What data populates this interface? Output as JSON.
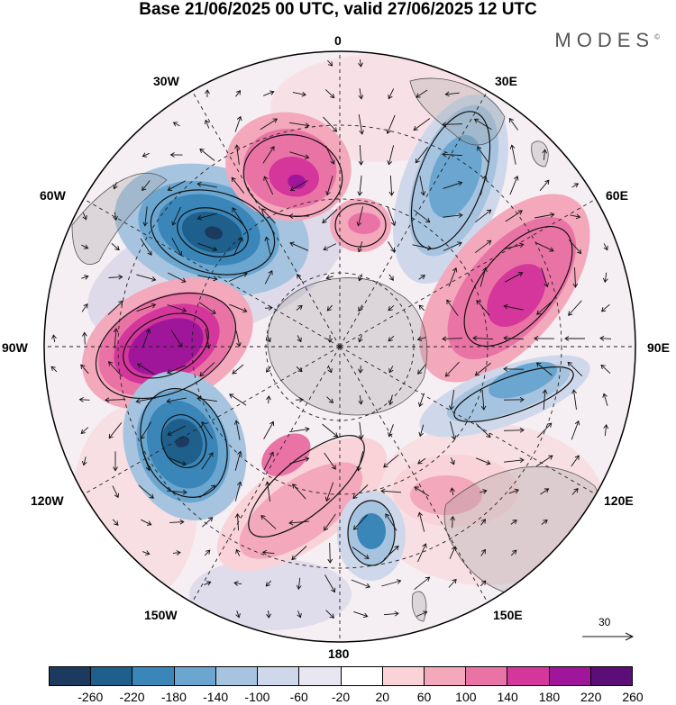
{
  "title": "Base 21/06/2025 00 UTC, valid 27/06/2025 12 UTC",
  "brand": "MODES",
  "brand_mark": "©",
  "longitude_labels": {
    "top": "0",
    "top_left": "30W",
    "top_right": "30E",
    "upper_left": "60W",
    "upper_right": "60E",
    "left": "90W",
    "right": "90E",
    "lower_left": "120W",
    "lower_right": "120E",
    "bottom_left": "150W",
    "bottom_right": "150E",
    "bottom": "180"
  },
  "vector_scale_label": "30",
  "colorbar": {
    "colors": [
      "#1b3a5e",
      "#1f5f8c",
      "#3a86b8",
      "#6aa6cf",
      "#a6c4df",
      "#cfd8ea",
      "#e8e6f1",
      "#ffffff",
      "#f9d3d8",
      "#f3a8bc",
      "#ea73a6",
      "#d4369b",
      "#a0169a",
      "#5c0e78"
    ],
    "ticks": [
      "-260",
      "-220",
      "-180",
      "-140",
      "-100",
      "-60",
      "-20",
      "20",
      "60",
      "100",
      "140",
      "180",
      "220",
      "260"
    ]
  },
  "anomaly_blobs": [
    {
      "name": "blob-south-atlantic-low",
      "sign": "negative",
      "level": -220
    },
    {
      "name": "blob-drake-high",
      "sign": "positive",
      "level": 220
    },
    {
      "name": "blob-south-pacific-low",
      "sign": "negative",
      "level": -220
    },
    {
      "name": "blob-atlantic-high",
      "sign": "positive",
      "level": 180
    },
    {
      "name": "blob-south-africa-low",
      "sign": "negative",
      "level": -140
    },
    {
      "name": "blob-indian-high",
      "sign": "positive",
      "level": 180
    },
    {
      "name": "blob-indian-low",
      "sign": "negative",
      "level": -140
    },
    {
      "name": "blob-ross-high",
      "sign": "positive",
      "level": 140
    },
    {
      "name": "blob-tasman-low",
      "sign": "negative",
      "level": -140
    },
    {
      "name": "blob-central-high",
      "sign": "positive",
      "level": 100
    },
    {
      "name": "blob-amundsen-high",
      "sign": "positive",
      "level": 100
    }
  ]
}
